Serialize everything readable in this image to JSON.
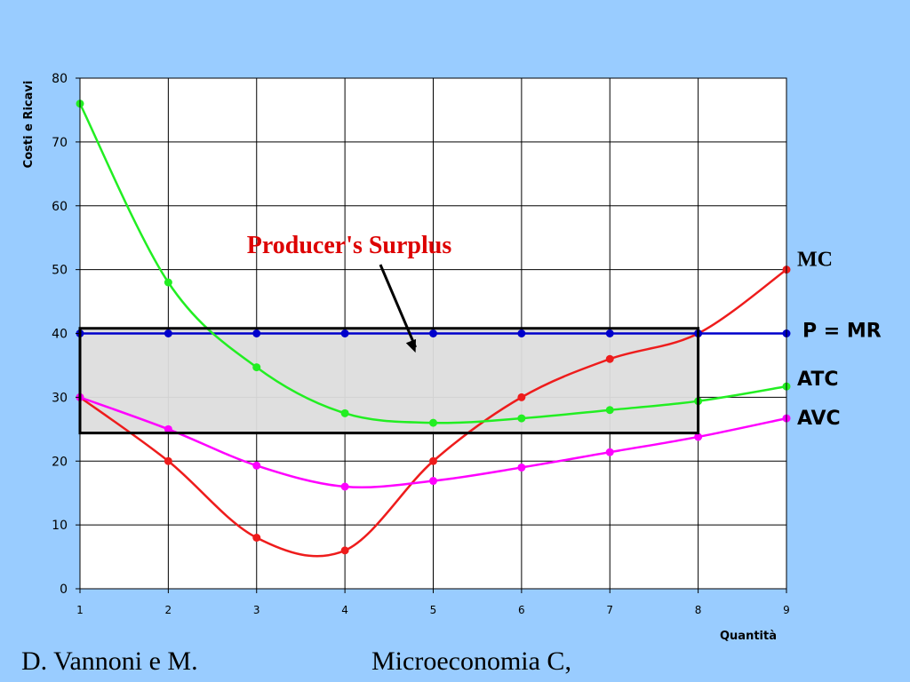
{
  "chart_data": {
    "type": "line",
    "title": "",
    "xlabel": "Quantità",
    "ylabel": "Costi e Ricavi",
    "xlim": [
      1,
      9
    ],
    "ylim": [
      0,
      80
    ],
    "x_ticks": [
      "1",
      "2",
      "3",
      "4",
      "5",
      "6",
      "7",
      "8",
      "9"
    ],
    "y_ticks": [
      "0",
      "10",
      "20",
      "30",
      "40",
      "50",
      "60",
      "70",
      "80"
    ],
    "grid": true,
    "legend": "labels at right end of each curve",
    "series": [
      {
        "name": "MC",
        "color": "#ee1c1c",
        "x": [
          1,
          2,
          3,
          4,
          5,
          6,
          7,
          8,
          9
        ],
        "y": [
          30,
          20,
          8,
          6,
          20,
          30,
          36,
          40,
          50
        ]
      },
      {
        "name": "P = MR",
        "color": "#0000cc",
        "x": [
          1,
          2,
          3,
          4,
          5,
          6,
          7,
          8,
          9
        ],
        "y": [
          40,
          40,
          40,
          40,
          40,
          40,
          40,
          40,
          40
        ]
      },
      {
        "name": "ATC",
        "color": "#22ee22",
        "x": [
          1,
          2,
          3,
          4,
          5,
          6,
          7,
          8,
          9
        ],
        "y": [
          76,
          48,
          34.7,
          27.5,
          26,
          26.7,
          28,
          29.4,
          31.7
        ]
      },
      {
        "name": "AVC",
        "color": "#ff00ff",
        "x": [
          1,
          2,
          3,
          4,
          5,
          6,
          7,
          8,
          9
        ],
        "y": [
          30,
          25,
          19.3,
          16,
          16.9,
          19,
          21.4,
          23.8,
          26.7
        ]
      }
    ],
    "annotations": [
      {
        "text": "Producer's Surplus",
        "color": "#dd0000",
        "arrow_to": {
          "x": 4.8,
          "y": 37
        }
      },
      {
        "type": "rectangle",
        "x_range": [
          1,
          8
        ],
        "y_range": [
          24.4,
          40.8
        ],
        "fill": "#dddddd",
        "stroke": "#000000"
      }
    ]
  },
  "footer": {
    "left": "D. Vannoni e M.",
    "center": "Microeconomia C,"
  }
}
